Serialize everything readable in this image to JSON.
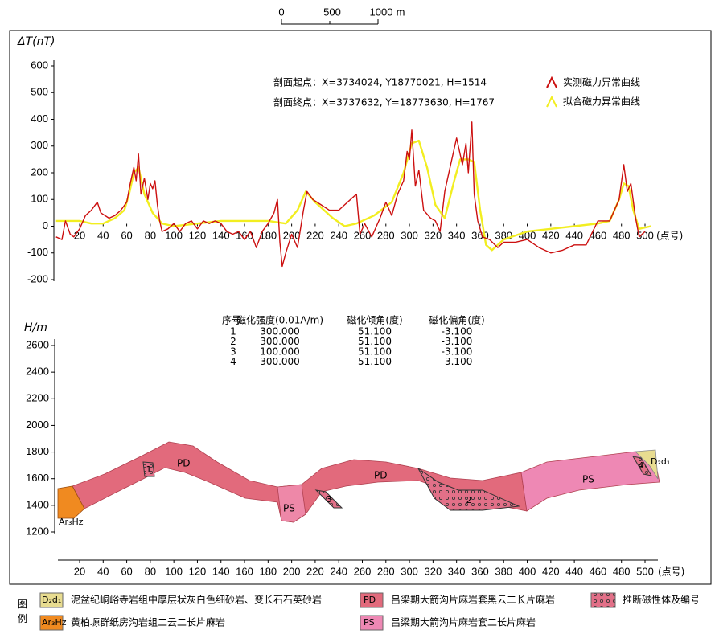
{
  "scale_bar": {
    "labels": [
      "0",
      "500",
      "1000"
    ],
    "unit": "m"
  },
  "chart_data": [
    {
      "type": "line",
      "y_label": "ΔT(nT)",
      "x_label": "(点号)",
      "annotations": [
        "剖面起点：X=3734024, Y18770021, H=1514",
        "剖面终点：X=3737632, Y=18773630, H=1767"
      ],
      "xlim": [
        0,
        510
      ],
      "xticks": [
        20,
        40,
        60,
        80,
        100,
        120,
        140,
        160,
        180,
        200,
        220,
        240,
        260,
        280,
        300,
        320,
        340,
        360,
        380,
        400,
        420,
        440,
        460,
        480,
        500
      ],
      "ylim": [
        -200,
        600
      ],
      "yticks": [
        600,
        500,
        400,
        300,
        200,
        100,
        0,
        -100,
        -200
      ],
      "series": [
        {
          "name": "实测磁力异常曲线",
          "color": "#cc1010",
          "x": [
            0,
            5,
            8,
            12,
            15,
            20,
            25,
            30,
            35,
            38,
            45,
            50,
            55,
            60,
            63,
            66,
            68,
            70,
            72,
            75,
            78,
            80,
            82,
            84,
            86,
            88,
            90,
            95,
            100,
            105,
            110,
            115,
            120,
            125,
            130,
            135,
            140,
            145,
            150,
            155,
            160,
            165,
            170,
            175,
            180,
            185,
            188,
            190,
            192,
            195,
            200,
            205,
            210,
            213,
            218,
            225,
            232,
            240,
            245,
            250,
            255,
            258,
            262,
            268,
            275,
            280,
            285,
            290,
            295,
            298,
            300,
            302,
            305,
            308,
            312,
            318,
            322,
            326,
            330,
            335,
            340,
            345,
            348,
            350,
            353,
            355,
            358,
            362,
            368,
            375,
            380,
            390,
            400,
            410,
            420,
            430,
            440,
            450,
            460,
            470,
            478,
            482,
            485,
            488,
            492,
            495,
            500
          ],
          "values": [
            -40,
            -50,
            20,
            -30,
            -40,
            -10,
            40,
            60,
            90,
            50,
            30,
            40,
            60,
            90,
            160,
            220,
            170,
            270,
            120,
            180,
            100,
            160,
            140,
            170,
            80,
            20,
            -20,
            -10,
            10,
            -20,
            10,
            20,
            -10,
            20,
            10,
            20,
            10,
            -20,
            -30,
            -20,
            -50,
            -20,
            -80,
            -20,
            10,
            50,
            100,
            -60,
            -150,
            -100,
            -30,
            -80,
            60,
            130,
            100,
            80,
            60,
            60,
            80,
            100,
            120,
            -30,
            10,
            -40,
            30,
            90,
            40,
            120,
            170,
            280,
            250,
            360,
            150,
            210,
            60,
            30,
            20,
            -20,
            130,
            230,
            330,
            230,
            310,
            200,
            390,
            120,
            20,
            -40,
            -50,
            -80,
            -60,
            -60,
            -50,
            -80,
            -100,
            -90,
            -70,
            -70,
            20,
            20,
            100,
            230,
            130,
            160,
            30,
            -40,
            -20
          ]
        },
        {
          "name": "拟合磁力异常曲线",
          "color": "#f2ee20",
          "x": [
            0,
            20,
            30,
            40,
            50,
            58,
            62,
            66,
            70,
            75,
            82,
            90,
            100,
            120,
            140,
            160,
            180,
            195,
            205,
            212,
            220,
            235,
            245,
            255,
            270,
            285,
            295,
            302,
            308,
            315,
            322,
            330,
            338,
            343,
            350,
            355,
            360,
            365,
            370,
            380,
            400,
            420,
            440,
            460,
            470,
            478,
            482,
            486,
            490,
            495,
            505
          ],
          "values": [
            20,
            20,
            10,
            10,
            30,
            60,
            120,
            200,
            220,
            120,
            50,
            10,
            0,
            10,
            20,
            20,
            20,
            10,
            60,
            130,
            90,
            30,
            0,
            10,
            40,
            90,
            200,
            310,
            320,
            220,
            80,
            30,
            170,
            250,
            250,
            240,
            60,
            -70,
            -90,
            -50,
            -20,
            -10,
            0,
            10,
            20,
            100,
            160,
            150,
            60,
            -10,
            0
          ]
        }
      ]
    },
    {
      "type": "section",
      "y_label": "H/m",
      "x_label": "(点号)",
      "ylim": [
        1200,
        2600
      ],
      "yticks": [
        2600,
        2400,
        2200,
        2000,
        1800,
        1600,
        1400,
        1200
      ],
      "xlim": [
        0,
        510
      ],
      "xticks": [
        20,
        40,
        60,
        80,
        100,
        120,
        140,
        160,
        180,
        200,
        220,
        240,
        260,
        280,
        300,
        320,
        340,
        360,
        380,
        400,
        420,
        440,
        460,
        480,
        500
      ],
      "labels": [
        "PD",
        "PD",
        "PS",
        "PS",
        "D₂d₁",
        "Ar₃Hz",
        "1",
        "2",
        "3",
        "4"
      ]
    }
  ],
  "magnetization_table": {
    "headers": [
      "序号",
      "磁化强度(0.01A/m)",
      "磁化倾角(度)",
      "磁化偏角(度)"
    ],
    "rows": [
      [
        "1",
        "300.000",
        "51.100",
        "-3.100"
      ],
      [
        "2",
        "300.000",
        "51.100",
        "-3.100"
      ],
      [
        "3",
        "100.000",
        "51.100",
        "-3.100"
      ],
      [
        "4",
        "300.000",
        "51.100",
        "-3.100"
      ]
    ]
  },
  "legend": {
    "title": "图例",
    "items": [
      {
        "code": "D₂d₁",
        "text": "泥盆纪峒峪寺岩组中厚层状灰白色细砂岩、变长石石英砂岩"
      },
      {
        "code": "PD",
        "text": "吕梁期大箭沟片麻岩套黑云二长片麻岩"
      },
      {
        "code": "",
        "text": "推断磁性体及编号"
      },
      {
        "code": "Ar₃Hz",
        "text": "黄柏塬群纸房沟岩组二云二长片麻岩"
      },
      {
        "code": "PS",
        "text": "吕梁期大箭沟片麻岩套二长片麻岩"
      }
    ]
  }
}
